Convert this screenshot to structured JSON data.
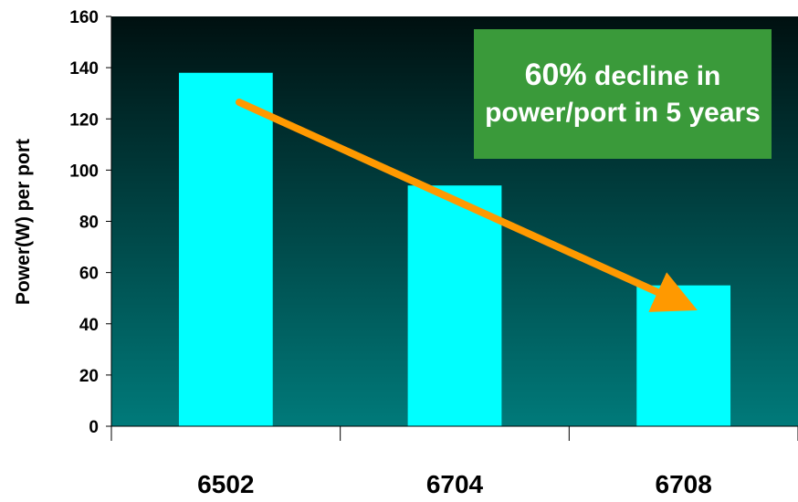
{
  "chart_data": {
    "type": "bar",
    "title": "",
    "xlabel": "",
    "ylabel": "Power(W) per port",
    "categories": [
      "6502",
      "6704",
      "6708"
    ],
    "values": [
      138,
      94,
      55
    ],
    "ylim": [
      0,
      160
    ],
    "yticks": [
      0,
      20,
      40,
      60,
      80,
      100,
      120,
      140,
      160
    ],
    "grid": false,
    "legend": "none",
    "colors": {
      "bar": "#00ffff",
      "plot_top": "#001010",
      "plot_bottom": "#007a7a",
      "arrow": "#ff9900",
      "callout_bg": "#3a9a3a"
    },
    "annotation": {
      "lead": "60%",
      "text": "decline in power/port in 5 years"
    }
  }
}
